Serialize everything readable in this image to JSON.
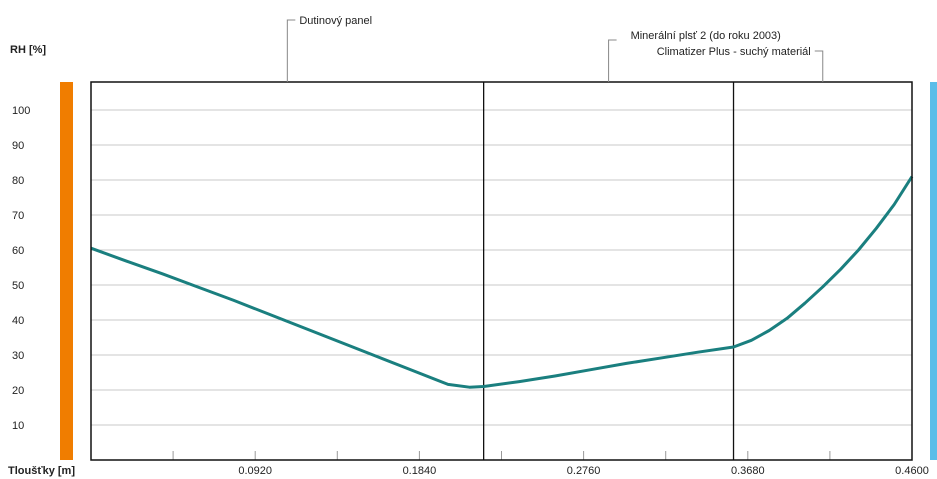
{
  "chart_data": {
    "type": "line",
    "ylabel": "RH [%]",
    "xlabel": "Tloušťky [m]",
    "xlim": [
      0,
      0.46
    ],
    "ylim": [
      0,
      108
    ],
    "yticks": [
      10,
      20,
      30,
      40,
      50,
      60,
      70,
      80,
      90,
      100
    ],
    "xtick_labels": [
      {
        "value": 0.092,
        "label": "0.0920"
      },
      {
        "value": 0.184,
        "label": "0.1840"
      },
      {
        "value": 0.276,
        "label": "0.2760"
      },
      {
        "value": 0.368,
        "label": "0.3680"
      },
      {
        "value": 0.46,
        "label": "0.4600"
      }
    ],
    "minor_xticks": [
      0.046,
      0.138,
      0.23,
      0.322,
      0.414
    ],
    "layer_boundaries": [
      0.22,
      0.36
    ],
    "layers": [
      {
        "name": "Dutinový panel",
        "range": [
          0,
          0.22
        ]
      },
      {
        "name": "Minerální plsť 2 (do roku 2003)",
        "range": [
          0.22,
          0.36
        ]
      },
      {
        "name": "Climatizer Plus - suchý materiál",
        "range": [
          0.36,
          0.46
        ]
      }
    ],
    "grid": true,
    "series": [
      {
        "color": "#1a7f7f",
        "points": [
          [
            0,
            60.5
          ],
          [
            0.02,
            56.8
          ],
          [
            0.04,
            53.2
          ],
          [
            0.06,
            49.4
          ],
          [
            0.08,
            45.6
          ],
          [
            0.1,
            41.6
          ],
          [
            0.12,
            37.6
          ],
          [
            0.14,
            33.6
          ],
          [
            0.16,
            29.6
          ],
          [
            0.18,
            25.6
          ],
          [
            0.2,
            21.6
          ],
          [
            0.212,
            20.8
          ],
          [
            0.22,
            21
          ],
          [
            0.24,
            22.4
          ],
          [
            0.26,
            24
          ],
          [
            0.28,
            25.8
          ],
          [
            0.3,
            27.6
          ],
          [
            0.32,
            29.2
          ],
          [
            0.34,
            30.8
          ],
          [
            0.36,
            32.3
          ],
          [
            0.37,
            34.2
          ],
          [
            0.38,
            37
          ],
          [
            0.39,
            40.5
          ],
          [
            0.4,
            44.8
          ],
          [
            0.41,
            49.5
          ],
          [
            0.42,
            54.5
          ],
          [
            0.43,
            60
          ],
          [
            0.44,
            66.2
          ],
          [
            0.45,
            73
          ],
          [
            0.46,
            81
          ]
        ]
      }
    ],
    "side_bars": {
      "left_color": "#f07d00",
      "right_color": "#5bbde8"
    }
  }
}
